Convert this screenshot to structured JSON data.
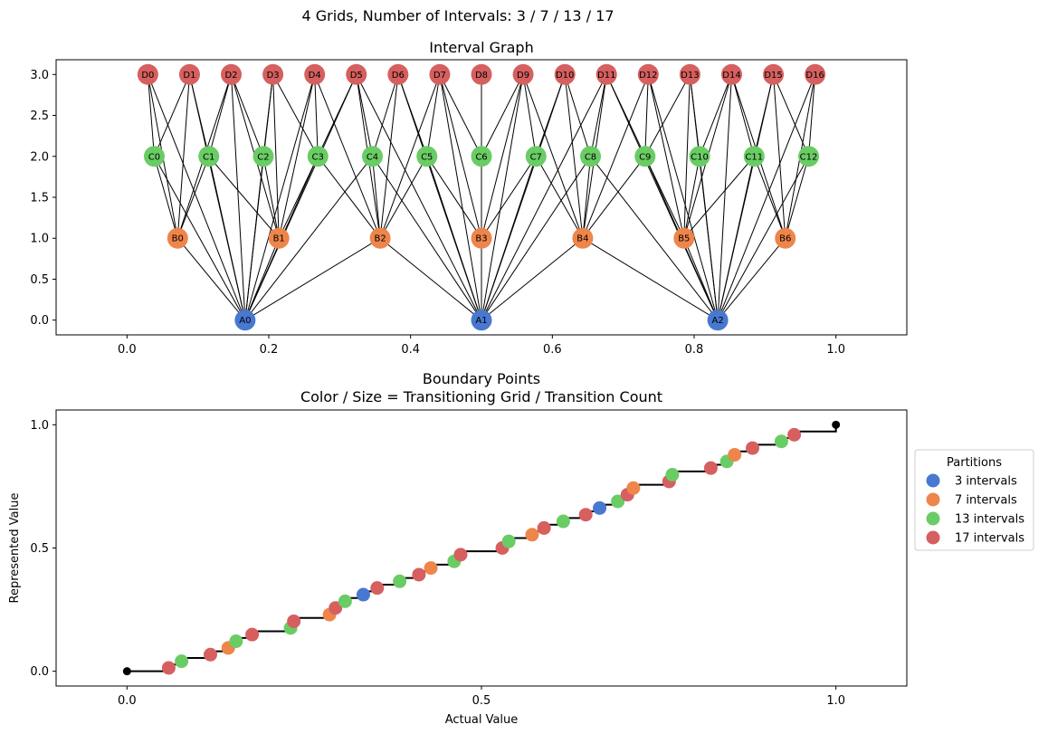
{
  "suptitle": "4 Grids, Number of Intervals: 3 / 7 / 13 / 17",
  "colors": {
    "A": "#4878d0",
    "B": "#ee854a",
    "C": "#6acc64",
    "D": "#d65f5f"
  },
  "chart_data": [
    {
      "type": "scatter",
      "subtype": "network",
      "title": "Interval Graph",
      "xlim": [
        -0.1,
        1.1
      ],
      "ylim": [
        -0.18,
        3.18
      ],
      "xticks": [
        0.0,
        0.2,
        0.4,
        0.6,
        0.8,
        1.0
      ],
      "xtick_labels": [
        "0.0",
        "0.2",
        "0.4",
        "0.6",
        "0.8",
        "1.0"
      ],
      "yticks": [
        0.0,
        0.5,
        1.0,
        1.5,
        2.0,
        2.5,
        3.0
      ],
      "ytick_labels": [
        "0.0",
        "0.5",
        "1.0",
        "1.5",
        "2.0",
        "2.5",
        "3.0"
      ],
      "levels": [
        {
          "prefix": "A",
          "intervals": 3,
          "y": 0,
          "color_key": "A"
        },
        {
          "prefix": "B",
          "intervals": 7,
          "y": 1,
          "color_key": "B"
        },
        {
          "prefix": "C",
          "intervals": 13,
          "y": 2,
          "color_key": "C"
        },
        {
          "prefix": "D",
          "intervals": 17,
          "y": 3,
          "color_key": "D"
        }
      ],
      "edge_rule": "nodes on different levels are connected when their intervals overlap",
      "grid": false
    },
    {
      "type": "scatter",
      "title": "Boundary Points",
      "subtitle": "Color / Size = Transitioning Grid / Transition Count",
      "xlabel": "Actual Value",
      "ylabel": "Represented Value",
      "xlim": [
        -0.1,
        1.1
      ],
      "ylim": [
        -0.06,
        1.06
      ],
      "xticks": [
        0.0,
        0.5,
        1.0
      ],
      "xtick_labels": [
        "0.0",
        "0.5",
        "1.0"
      ],
      "yticks": [
        0.0,
        0.5,
        1.0
      ],
      "ytick_labels": [
        "0.0",
        "0.5",
        "1.0"
      ],
      "grid": false,
      "legend": {
        "title": "Partitions",
        "placement": "right, outside plot",
        "entries": [
          {
            "label": "3 intervals",
            "color_key": "A",
            "n": 3
          },
          {
            "label": "7 intervals",
            "color_key": "B",
            "n": 7
          },
          {
            "label": "13 intervals",
            "color_key": "C",
            "n": 13
          },
          {
            "label": "17 intervals",
            "color_key": "D",
            "n": 17
          }
        ]
      },
      "series": [
        {
          "grid": "3 intervals",
          "color_key": "A",
          "n": 3
        },
        {
          "grid": "7 intervals",
          "color_key": "B",
          "n": 7
        },
        {
          "grid": "13 intervals",
          "color_key": "C",
          "n": 13
        },
        {
          "grid": "17 intervals",
          "color_key": "D",
          "n": 17
        }
      ],
      "endpoints": [
        [
          0.0,
          0.0
        ],
        [
          1.0,
          1.0
        ]
      ]
    }
  ]
}
